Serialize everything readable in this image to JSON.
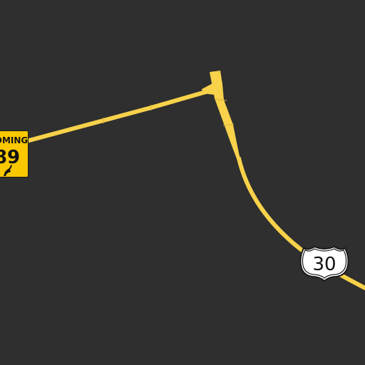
{
  "map": {
    "background_color": "#2f2f2f",
    "road_color": "#f7d24a",
    "road_edge_color": "#d9b43a"
  },
  "shields": {
    "wyoming": {
      "state_label": "OMING",
      "route_number": "89",
      "icon": "bucking-horse-icon",
      "color": "#f9c800"
    },
    "us_route": {
      "route_number": "30",
      "icon": "us-highway-shield-icon",
      "color": "#ffffff"
    }
  }
}
